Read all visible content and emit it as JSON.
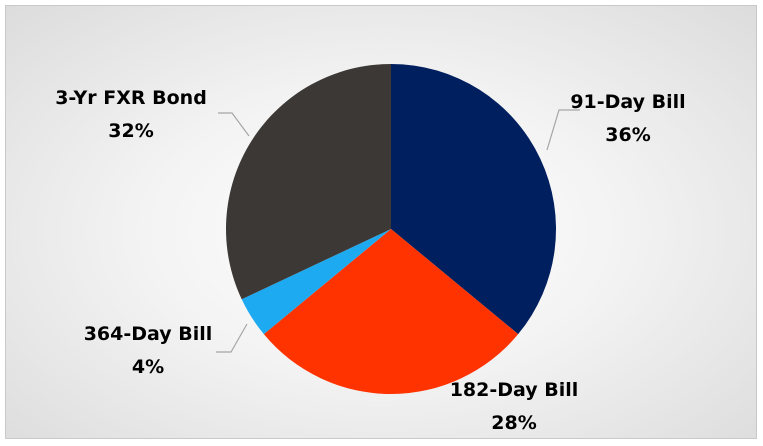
{
  "chart_data": {
    "type": "pie",
    "title": "",
    "slices": [
      {
        "label": "91-Day Bill",
        "value": 36,
        "display": "36%",
        "color": "#001f5f"
      },
      {
        "label": "182-Day Bill",
        "value": 28,
        "display": "28%",
        "color": "#ff3300"
      },
      {
        "label": "364-Day Bill",
        "value": 4,
        "display": "4%",
        "color": "#1eaaf1"
      },
      {
        "label": "3-Yr FXR Bond",
        "value": 32,
        "display": "32%",
        "color": "#3b3835"
      }
    ],
    "start_angle": "12 o'clock",
    "direction": "clockwise",
    "legend": "none",
    "label_style": "outside with leader lines"
  }
}
